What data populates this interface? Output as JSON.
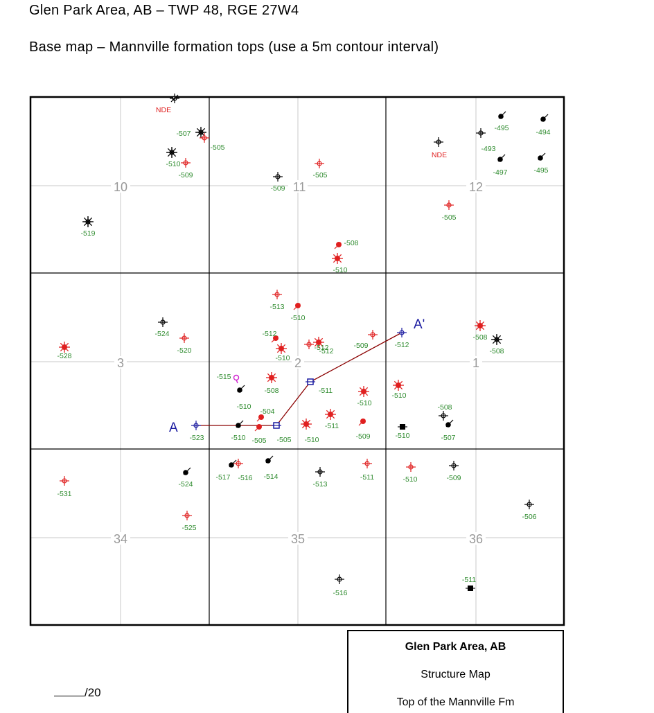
{
  "header": {
    "title": "Glen Park Area, AB – TWP 48, RGE 27W4",
    "subtitle": "Base map – Mannville formation tops (use a 5m contour interval)"
  },
  "map": {
    "sections": [
      "10",
      "11",
      "12",
      "3",
      "2",
      "1",
      "34",
      "35",
      "36"
    ],
    "cross_section": {
      "start_label": "A",
      "end_label": "A'"
    },
    "colors": {
      "value_green": "#2e8b2e",
      "nde_red": "#e02020",
      "well_red": "#e02020",
      "section_line": "#8b0000",
      "section_label": "#1a1aa0"
    },
    "wells": [
      {
        "text": "NDE",
        "color": "red",
        "icon": "dry-hole-icon"
      },
      {
        "text": "-507",
        "color": "green",
        "icon": "abandoned-well-icon"
      },
      {
        "text": "-505",
        "color": "green",
        "icon": "red-well-icon"
      },
      {
        "text": "-510",
        "color": "green",
        "icon": "abandoned-well-icon"
      },
      {
        "text": "-509",
        "color": "green",
        "icon": "red-well-icon"
      },
      {
        "text": "-509",
        "color": "green",
        "icon": "location-icon"
      },
      {
        "text": "-505",
        "color": "green",
        "icon": "red-well-icon"
      },
      {
        "text": "NDE",
        "color": "red",
        "icon": "location-icon"
      },
      {
        "text": "-495",
        "color": "green",
        "icon": "oil-well-icon"
      },
      {
        "text": "-493",
        "color": "green",
        "icon": "location-icon"
      },
      {
        "text": "-494",
        "color": "green",
        "icon": "oil-well-icon"
      },
      {
        "text": "-497",
        "color": "green",
        "icon": "oil-well-icon"
      },
      {
        "text": "-495",
        "color": "green",
        "icon": "oil-well-icon"
      },
      {
        "text": "-505",
        "color": "green",
        "icon": "red-well-icon"
      },
      {
        "text": "-519",
        "color": "green",
        "icon": "abandoned-well-icon"
      },
      {
        "text": "-508",
        "color": "green",
        "icon": "red-oil-well-icon"
      },
      {
        "text": "-510",
        "color": "green",
        "icon": "red-gas-well-icon"
      },
      {
        "text": "-513",
        "color": "green",
        "icon": "red-well-icon"
      },
      {
        "text": "-510",
        "color": "green",
        "icon": "red-oil-well-icon"
      },
      {
        "text": "-524",
        "color": "green",
        "icon": "location-icon"
      },
      {
        "text": "-520",
        "color": "green",
        "icon": "red-well-icon"
      },
      {
        "text": "-512",
        "color": "green",
        "icon": "red-oil-well-icon"
      },
      {
        "text": "-510",
        "color": "green",
        "icon": "red-gas-well-icon"
      },
      {
        "text": "-512",
        "color": "green",
        "icon": "red-gas-well-icon"
      },
      {
        "text": "-512",
        "color": "green",
        "icon": "red-well-icon"
      },
      {
        "text": "-509",
        "color": "green",
        "icon": "red-well-icon"
      },
      {
        "text": "-512",
        "color": "green",
        "icon": "section-end-icon"
      },
      {
        "text": "-528",
        "color": "green",
        "icon": "red-gas-well-icon"
      },
      {
        "text": "-508",
        "color": "green",
        "icon": "red-gas-well-icon"
      },
      {
        "text": "-508",
        "color": "green",
        "icon": "abandoned-well-icon"
      },
      {
        "text": "-515",
        "color": "green",
        "icon": "magenta-well-icon"
      },
      {
        "text": "-508",
        "color": "green",
        "icon": "red-gas-well-icon"
      },
      {
        "text": "-511",
        "color": "green",
        "icon": "section-well-icon"
      },
      {
        "text": "-510",
        "color": "green",
        "icon": "red-gas-well-icon"
      },
      {
        "text": "-510",
        "color": "green",
        "icon": "red-gas-well-icon"
      },
      {
        "text": "-510",
        "color": "green",
        "icon": "black-oil-well-icon"
      },
      {
        "text": "-504",
        "color": "green",
        "icon": "red-oil-well-icon"
      },
      {
        "text": "-508",
        "color": "green",
        "icon": "location-icon"
      },
      {
        "text": "-523",
        "color": "green",
        "icon": "section-start-icon"
      },
      {
        "text": "-510",
        "color": "green",
        "icon": "black-oil-well-icon"
      },
      {
        "text": "-505",
        "color": "green",
        "icon": "red-oil-well-icon"
      },
      {
        "text": "-505",
        "color": "green",
        "icon": "section-well-icon"
      },
      {
        "text": "-510",
        "color": "green",
        "icon": "red-gas-well-icon"
      },
      {
        "text": "-511",
        "color": "green",
        "icon": "red-gas-well-icon"
      },
      {
        "text": "-509",
        "color": "green",
        "icon": "red-oil-well-icon"
      },
      {
        "text": "-510",
        "color": "green",
        "icon": "black-well-icon"
      },
      {
        "text": "-507",
        "color": "green",
        "icon": "black-oil-well-icon"
      },
      {
        "text": "-531",
        "color": "green",
        "icon": "red-well-icon"
      },
      {
        "text": "-524",
        "color": "green",
        "icon": "black-oil-well-icon"
      },
      {
        "text": "-517",
        "color": "green",
        "icon": "black-oil-well-icon"
      },
      {
        "text": "-516",
        "color": "green",
        "icon": "red-well-icon"
      },
      {
        "text": "-514",
        "color": "green",
        "icon": "black-oil-well-icon"
      },
      {
        "text": "-513",
        "color": "green",
        "icon": "location-icon"
      },
      {
        "text": "-511",
        "color": "green",
        "icon": "red-well-icon"
      },
      {
        "text": "-510",
        "color": "green",
        "icon": "red-well-icon"
      },
      {
        "text": "-509",
        "color": "green",
        "icon": "location-icon"
      },
      {
        "text": "-506",
        "color": "green",
        "icon": "location-icon"
      },
      {
        "text": "-525",
        "color": "green",
        "icon": "red-well-icon"
      },
      {
        "text": "-516",
        "color": "green",
        "icon": "location-icon"
      },
      {
        "text": "-511",
        "color": "green",
        "icon": "black-well-icon"
      }
    ]
  },
  "score": {
    "total": "/20"
  },
  "legend": {
    "title": "Glen Park Area, AB",
    "line2": "Structure Map",
    "line3": "Top of the Mannville Fm"
  }
}
